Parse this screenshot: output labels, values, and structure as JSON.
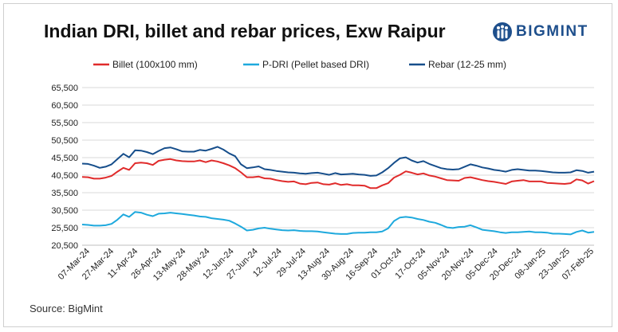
{
  "header": {
    "title": "Indian DRI, billet and rebar prices, Exw Raipur",
    "logo_text": "BIGMINT"
  },
  "footer": {
    "source": "Source: BigMint"
  },
  "chart_data": {
    "type": "line",
    "title": "Indian DRI, billet and rebar prices, Exw Raipur",
    "xlabel": "",
    "ylabel": "",
    "ylim": [
      20500,
      65500
    ],
    "yticks": [
      20500,
      25500,
      30500,
      35500,
      40500,
      45500,
      50500,
      55500,
      60500,
      65500
    ],
    "ytick_labels": [
      "20,500",
      "25,500",
      "30,500",
      "35,500",
      "40,500",
      "45,500",
      "50,500",
      "55,500",
      "60,500",
      "65,500"
    ],
    "xtick_labels": [
      "07-Mar-24",
      "27-Mar-24",
      "11-Apr-24",
      "26-Apr-24",
      "13-May-24",
      "28-May-24",
      "12-Jun-24",
      "27-Jun-24",
      "12-Jul-24",
      "29-Jul-24",
      "13-Aug-24",
      "30-Aug-24",
      "16-Sep-24",
      "01-Oct-24",
      "17-Oct-24",
      "05-Nov-24",
      "20-Nov-24",
      "05-Dec-24",
      "20-Dec-24",
      "08-Jan-25",
      "23-Jan-25",
      "07-Feb-25"
    ],
    "grid": true,
    "legend_position": "top",
    "series": [
      {
        "name": "Billet (100x100 mm)",
        "color": "#e02b2b",
        "values": [
          40000,
          39900,
          39500,
          39500,
          39800,
          40300,
          41500,
          42600,
          42000,
          43900,
          44100,
          43900,
          43400,
          44600,
          44900,
          45100,
          44700,
          44500,
          44400,
          44400,
          44700,
          44200,
          44700,
          44400,
          43900,
          43300,
          42500,
          41300,
          39900,
          39900,
          40100,
          39600,
          39500,
          39100,
          38800,
          38600,
          38700,
          38100,
          37900,
          38300,
          38400,
          37900,
          37800,
          38200,
          37700,
          37900,
          37600,
          37600,
          37500,
          36800,
          36800,
          37600,
          38200,
          39800,
          40600,
          41600,
          41200,
          40700,
          41000,
          40400,
          40100,
          39600,
          39100,
          39000,
          38900,
          39700,
          39900,
          39500,
          39100,
          38800,
          38600,
          38300,
          38000,
          38700,
          38900,
          39100,
          38700,
          38700,
          38700,
          38300,
          38200,
          38100,
          38000,
          38200,
          39300,
          39000,
          38100,
          38800
        ]
      },
      {
        "name": "P-DRI (Pellet based DRI)",
        "color": "#1ea9dd",
        "values": [
          26400,
          26300,
          26100,
          26100,
          26200,
          26600,
          27800,
          29300,
          28600,
          30000,
          29800,
          29200,
          28800,
          29500,
          29600,
          29800,
          29600,
          29400,
          29200,
          29000,
          28700,
          28600,
          28200,
          28000,
          27800,
          27500,
          26700,
          25800,
          24700,
          24900,
          25300,
          25500,
          25200,
          25000,
          24800,
          24700,
          24800,
          24600,
          24500,
          24500,
          24400,
          24200,
          24000,
          23800,
          23700,
          23700,
          24000,
          24100,
          24100,
          24200,
          24200,
          24400,
          25300,
          27400,
          28400,
          28600,
          28400,
          28000,
          27700,
          27200,
          26900,
          26300,
          25600,
          25400,
          25700,
          25800,
          26200,
          25600,
          24900,
          24700,
          24500,
          24200,
          24000,
          24200,
          24200,
          24300,
          24400,
          24200,
          24200,
          24100,
          23800,
          23800,
          23700,
          23600,
          24300,
          24700,
          24100,
          24300
        ]
      },
      {
        "name": "Rebar (12-25 mm)",
        "color": "#164e8b",
        "values": [
          43800,
          43700,
          43200,
          42600,
          42900,
          43600,
          45100,
          46600,
          45600,
          47600,
          47500,
          47100,
          46500,
          47400,
          48200,
          48400,
          47900,
          47300,
          47200,
          47200,
          47700,
          47500,
          48000,
          48600,
          47800,
          46700,
          45900,
          43600,
          42500,
          42700,
          43000,
          42200,
          42000,
          41700,
          41500,
          41300,
          41200,
          41000,
          40900,
          41100,
          41200,
          40900,
          40600,
          41100,
          40700,
          40800,
          40900,
          40700,
          40600,
          40300,
          40400,
          41300,
          42500,
          44000,
          45300,
          45600,
          44700,
          44100,
          44500,
          43700,
          43100,
          42500,
          42200,
          42100,
          42200,
          42900,
          43600,
          43200,
          42700,
          42400,
          42000,
          41800,
          41500,
          42000,
          42200,
          42000,
          41800,
          41800,
          41700,
          41500,
          41300,
          41200,
          41200,
          41300,
          41900,
          41700,
          41200,
          41500
        ]
      }
    ]
  }
}
